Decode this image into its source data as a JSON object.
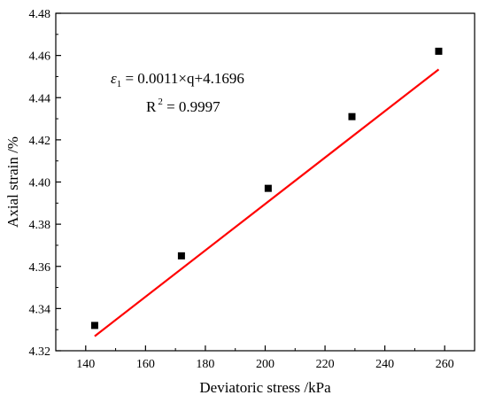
{
  "chart_data": {
    "type": "scatter",
    "xlabel": "Deviatoric stress /kPa",
    "ylabel": "Axial strain /%",
    "xlim": [
      130,
      270
    ],
    "ylim": [
      4.32,
      4.48
    ],
    "xticks": [
      140,
      160,
      180,
      200,
      220,
      240,
      260
    ],
    "yticks": [
      4.32,
      4.34,
      4.36,
      4.38,
      4.4,
      4.42,
      4.44,
      4.46,
      4.48
    ],
    "xtick_labels": [
      "140",
      "160",
      "180",
      "200",
      "220",
      "240",
      "260"
    ],
    "ytick_labels": [
      "4.32",
      "4.34",
      "4.36",
      "4.38",
      "4.40",
      "4.42",
      "4.44",
      "4.46",
      "4.48"
    ],
    "grid": false,
    "series": [
      {
        "marker": "square",
        "color": "#000000",
        "x": [
          143,
          172,
          201,
          229,
          258
        ],
        "y": [
          4.332,
          4.365,
          4.397,
          4.431,
          4.462
        ]
      }
    ],
    "fit": {
      "color": "#ff0000",
      "slope": 0.0011,
      "intercept": 4.1696,
      "x_range": [
        143,
        258
      ]
    },
    "annotations": {
      "eq_symbol": "ε",
      "eq_subscript": "1",
      "eq_rest": " = 0.0011×q+4.1696",
      "r2_label": "R",
      "r2_sup": "2",
      "r2_value": " = 0.9997"
    }
  }
}
